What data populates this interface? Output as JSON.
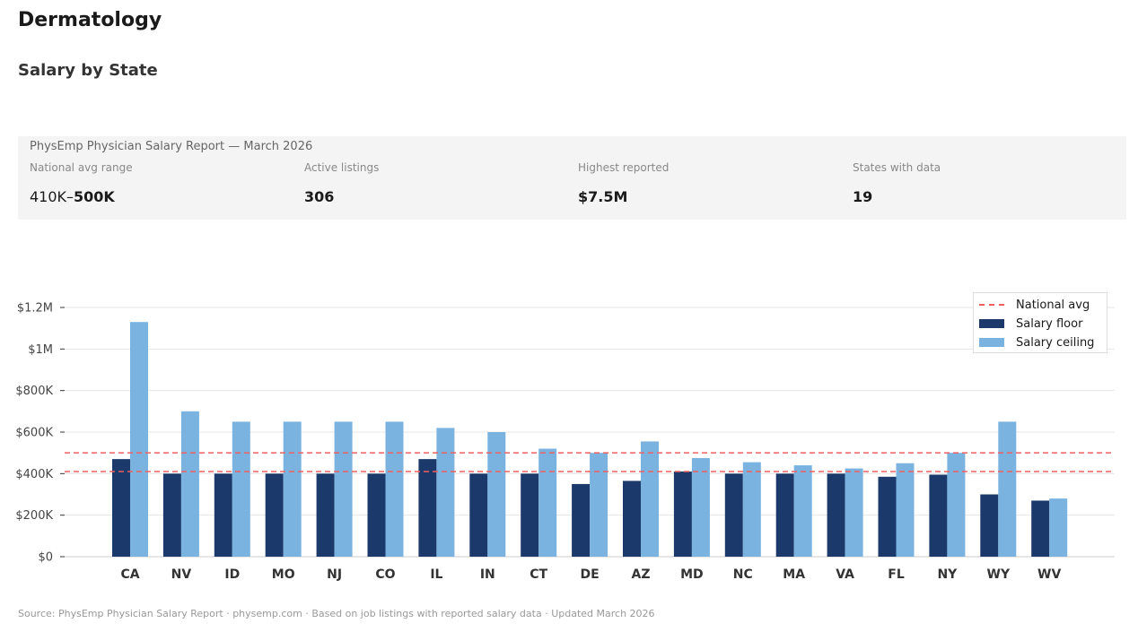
{
  "header": {
    "title": "Dermatology",
    "subtitle": "Salary by State"
  },
  "panel": {
    "heading": "PhysEmp Physician Salary Report — March 2026",
    "stats": [
      {
        "label": "National avg range",
        "value_prefix": "410K–",
        "value_main": "500K"
      },
      {
        "label": "Active listings",
        "value_prefix": "",
        "value_main": "306"
      },
      {
        "label": "Highest reported",
        "value_prefix": "",
        "value_main": "$7.5M"
      },
      {
        "label": "States with data",
        "value_prefix": "",
        "value_main": "19"
      }
    ]
  },
  "legend": {
    "avg_label": "National avg",
    "floor_label": "Salary floor",
    "ceiling_label": "Salary ceiling"
  },
  "colors": {
    "floor": "#1b3a6b",
    "ceiling": "#7ab3e0",
    "avg_line": "#f06060",
    "grid": "#e6e6e6"
  },
  "chart_data": {
    "type": "bar",
    "categories": [
      "CA",
      "NV",
      "ID",
      "MO",
      "NJ",
      "CO",
      "IL",
      "IN",
      "CT",
      "DE",
      "AZ",
      "MD",
      "NC",
      "MA",
      "VA",
      "FL",
      "NY",
      "WY",
      "WV"
    ],
    "series": [
      {
        "name": "Salary floor",
        "values": [
          470000,
          400000,
          400000,
          400000,
          400000,
          400000,
          470000,
          400000,
          400000,
          350000,
          365000,
          410000,
          400000,
          400000,
          400000,
          385000,
          395000,
          300000,
          270000
        ]
      },
      {
        "name": "Salary ceiling",
        "values": [
          1130000,
          700000,
          650000,
          650000,
          650000,
          650000,
          620000,
          600000,
          520000,
          500000,
          555000,
          475000,
          455000,
          440000,
          425000,
          450000,
          500000,
          650000,
          280000
        ]
      }
    ],
    "reference_lines": [
      {
        "name": "National avg",
        "values": [
          410000,
          500000
        ]
      }
    ],
    "ylim": [
      0,
      1200000
    ],
    "yticks": [
      {
        "value": 0,
        "label": "$0"
      },
      {
        "value": 200000,
        "label": "$200K"
      },
      {
        "value": 400000,
        "label": "$400K"
      },
      {
        "value": 600000,
        "label": "$600K"
      },
      {
        "value": 800000,
        "label": "$800K"
      },
      {
        "value": 1000000,
        "label": "$1M"
      },
      {
        "value": 1200000,
        "label": "$1.2M"
      }
    ],
    "grid": true,
    "legend_position": "top-right"
  },
  "footer": {
    "source": "Source: PhysEmp Physician Salary Report · physemp.com · Based on job listings with reported salary data · Updated March 2026"
  }
}
